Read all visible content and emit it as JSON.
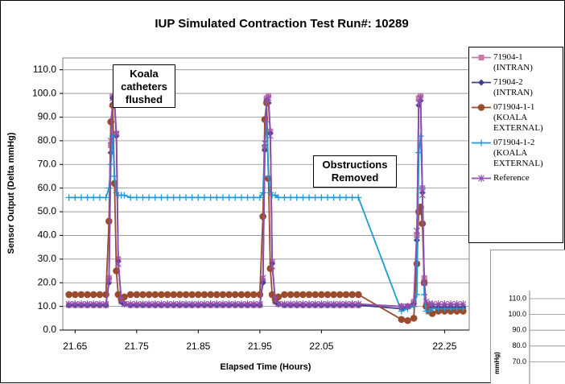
{
  "chart_data": {
    "type": "line",
    "title": "IUP Simulated Contraction Test Run#: 10289",
    "xlabel": "Elapsed Time (Hours)",
    "ylabel": "Sensor Output (Delta mmHg)",
    "x": [
      21.64,
      21.65,
      21.66,
      21.67,
      21.68,
      21.69,
      21.7,
      21.705,
      21.708,
      21.711,
      21.714,
      21.717,
      21.72,
      21.725,
      21.73,
      21.74,
      21.75,
      21.76,
      21.77,
      21.78,
      21.79,
      21.8,
      21.81,
      21.82,
      21.83,
      21.84,
      21.85,
      21.86,
      21.87,
      21.88,
      21.89,
      21.9,
      21.91,
      21.92,
      21.93,
      21.94,
      21.95,
      21.955,
      21.958,
      21.961,
      21.964,
      21.967,
      21.97,
      21.975,
      21.98,
      21.99,
      22.0,
      22.01,
      22.02,
      22.03,
      22.04,
      22.05,
      22.06,
      22.07,
      22.08,
      22.09,
      22.1,
      22.11,
      22.18,
      22.19,
      22.2,
      22.205,
      22.208,
      22.211,
      22.214,
      22.217,
      22.22,
      22.225,
      22.23,
      22.24,
      22.25,
      22.26,
      22.27,
      22.28
    ],
    "series": [
      {
        "name": "71904-1 (INTRAN)",
        "color": "#c97aa8",
        "marker": "square",
        "values": [
          10.5,
          10.5,
          10.5,
          10.5,
          10.5,
          10.5,
          10.5,
          22,
          78,
          99,
          97,
          83,
          30,
          12,
          11,
          10.5,
          10.5,
          10.5,
          10.5,
          10.5,
          10.5,
          10.5,
          10.5,
          10.5,
          10.5,
          10.5,
          10.5,
          10.5,
          10.5,
          10.5,
          10.5,
          10.5,
          10.5,
          10.5,
          10.5,
          10.5,
          10.5,
          21,
          77,
          98,
          99,
          84,
          29,
          12,
          11,
          10.5,
          10.5,
          10.5,
          10.5,
          10.5,
          10.5,
          10.5,
          10.5,
          10.5,
          10.5,
          10.5,
          10.5,
          10.5,
          10,
          10,
          12,
          40,
          98,
          99,
          60,
          22,
          11,
          10,
          10,
          10,
          10,
          10,
          10,
          10
        ]
      },
      {
        "name": "71904-2 (INTRAN)",
        "color": "#3a3f8c",
        "marker": "diamond",
        "values": [
          10.5,
          10.5,
          10.5,
          10.5,
          10.5,
          10.5,
          10.5,
          20,
          75,
          98,
          95,
          82,
          29,
          12,
          11,
          10.5,
          10.5,
          10.5,
          10.5,
          10.5,
          10.5,
          10.5,
          10.5,
          10.5,
          10.5,
          10.5,
          10.5,
          10.5,
          10.5,
          10.5,
          10.5,
          10.5,
          10.5,
          10.5,
          10.5,
          10.5,
          10.5,
          20,
          76,
          97,
          96,
          83,
          28,
          12,
          11,
          10.5,
          10.5,
          10.5,
          10.5,
          10.5,
          10.5,
          10.5,
          10.5,
          10.5,
          10.5,
          10.5,
          10.5,
          10.5,
          9,
          10,
          11,
          38,
          95,
          97,
          58,
          20,
          10,
          9,
          10,
          9.5,
          9.5,
          9.5,
          9.5,
          9.5
        ]
      },
      {
        "name": "071904-1-1 (KOALA EXTERNAL)",
        "color": "#9c4a2c",
        "marker": "circle",
        "values": [
          15,
          15,
          15,
          15,
          15,
          15,
          15,
          46,
          88,
          95,
          62,
          25,
          15,
          13,
          14,
          15,
          15,
          15,
          15,
          15,
          15,
          15,
          15,
          15,
          15,
          15,
          15,
          15,
          15,
          15,
          15,
          15,
          15,
          15,
          15,
          15,
          15,
          48,
          89,
          96,
          64,
          26,
          15,
          13,
          14,
          15,
          15,
          15,
          15,
          15,
          15,
          15,
          15,
          15,
          15,
          15,
          15,
          15,
          4.5,
          4,
          5,
          28,
          50,
          52,
          45,
          20,
          10,
          8,
          7,
          8,
          8,
          8,
          8,
          8
        ]
      },
      {
        "name": "071904-1-2 (KOALA EXTERNAL)",
        "color": "#1d9ad6",
        "marker": "plus",
        "values": [
          56,
          56,
          56,
          56,
          56,
          56,
          56,
          60,
          70,
          82,
          65,
          58,
          57,
          57,
          57,
          56,
          56,
          56,
          56,
          56,
          56,
          56,
          56,
          56,
          56,
          56,
          56,
          56,
          56,
          56,
          56,
          56,
          56,
          56,
          56,
          56,
          56,
          58,
          78,
          88,
          65,
          58,
          57,
          57,
          56,
          56,
          56,
          56,
          56,
          56,
          56,
          56,
          56,
          56,
          56,
          56,
          56,
          56,
          8,
          9,
          10,
          15,
          75,
          82,
          60,
          15,
          8,
          8,
          9,
          9,
          9,
          9,
          9,
          9
        ]
      },
      {
        "name": "Reference",
        "color": "#8e4fb0",
        "marker": "asterisk",
        "values": [
          11,
          11,
          11,
          11,
          11,
          11,
          11,
          21,
          80,
          98,
          96,
          83,
          28,
          13,
          11,
          11,
          11,
          11,
          11,
          11,
          11,
          11,
          11,
          11,
          11,
          11,
          11,
          11,
          11,
          11,
          11,
          11,
          11,
          11,
          11,
          11,
          11,
          22,
          79,
          97,
          98,
          82,
          27,
          13,
          11,
          11,
          11,
          11,
          11,
          11,
          11,
          11,
          11,
          11,
          11,
          11,
          11,
          11,
          10,
          10,
          11,
          42,
          96,
          98,
          57,
          20,
          12,
          11,
          11,
          11,
          11,
          11,
          11,
          11
        ]
      }
    ],
    "xlim": [
      21.63,
      22.29
    ],
    "xticks": [
      21.65,
      21.75,
      21.85,
      21.95,
      22.05,
      22.25
    ],
    "ylim": [
      0,
      115
    ],
    "yticks": [
      {
        "value": 0,
        "label": "0.0"
      },
      {
        "value": 10,
        "label": "10.0"
      },
      {
        "value": 20,
        "label": "20.0"
      },
      {
        "value": 30,
        "label": "30.0"
      },
      {
        "value": 40,
        "label": "40.0"
      },
      {
        "value": 50,
        "label": "50.0"
      },
      {
        "value": 60,
        "label": "60.0"
      },
      {
        "value": 70,
        "label": "70.0"
      },
      {
        "value": 80,
        "label": "80.0"
      },
      {
        "value": 90,
        "label": "90.0"
      },
      {
        "value": 100,
        "label": "100.0"
      },
      {
        "value": 110,
        "label": "110.0"
      }
    ],
    "grid": true,
    "legend": "right",
    "annotations": [
      "Koala catheters flushed",
      "Obstructions Removed"
    ]
  },
  "inset": {
    "tick_labels": [
      "110.0",
      "100.0",
      "90.0",
      "80.0",
      "70.0"
    ],
    "axis_label": "mmHg)"
  }
}
